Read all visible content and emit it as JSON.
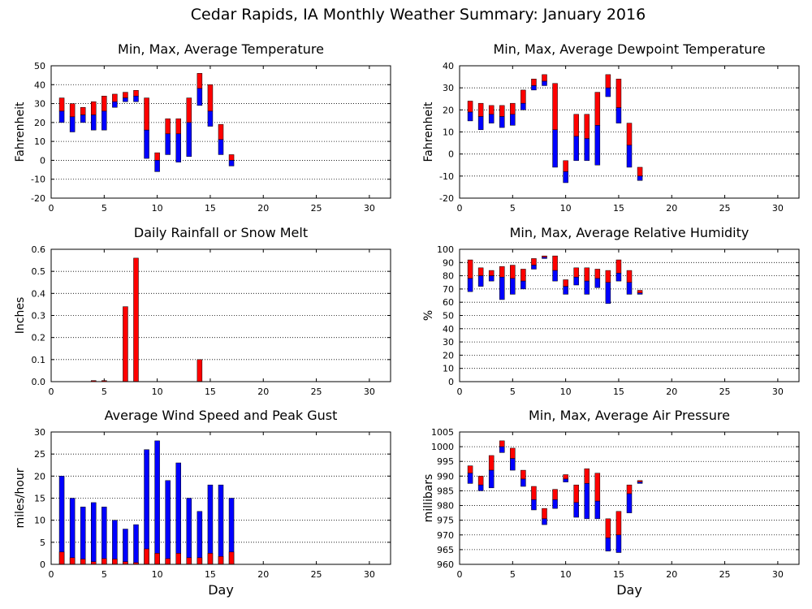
{
  "title": "Cedar Rapids, IA Monthly Weather Summary: January 2016",
  "colors": {
    "red": "#ff0000",
    "blue": "#0000ff",
    "grid": "#000000"
  },
  "chart_data": [
    {
      "type": "floating-bar",
      "title": "Min, Max, Average Temperature",
      "ylabel": "Fahrenheit",
      "xlabel": "",
      "xlim": [
        0,
        32
      ],
      "xticks": [
        0,
        5,
        10,
        15,
        20,
        25,
        30
      ],
      "ylim": [
        -20,
        50
      ],
      "yticks": [
        -20,
        -10,
        0,
        10,
        20,
        30,
        40,
        50
      ],
      "grid": "horizontal dotted",
      "x": [
        1,
        2,
        3,
        4,
        5,
        6,
        7,
        8,
        9,
        10,
        11,
        12,
        13,
        14,
        15,
        16,
        17
      ],
      "min": [
        20,
        15,
        20,
        16,
        16,
        28,
        31,
        31,
        1,
        -6,
        3,
        -1,
        2,
        29,
        18,
        3,
        -3
      ],
      "avg": [
        26,
        23,
        24,
        24,
        26,
        31,
        33,
        34,
        16,
        0,
        14,
        14,
        20,
        38,
        26,
        11,
        0
      ],
      "max": [
        33,
        30,
        28,
        31,
        34,
        35,
        36,
        37,
        33,
        4,
        22,
        22,
        33,
        46,
        40,
        19,
        3
      ]
    },
    {
      "type": "floating-bar",
      "title": "Min, Max, Average Dewpoint Temperature",
      "ylabel": "Fahrenheit",
      "xlabel": "",
      "xlim": [
        0,
        32
      ],
      "xticks": [
        0,
        5,
        10,
        15,
        20,
        25,
        30
      ],
      "ylim": [
        -20,
        40
      ],
      "yticks": [
        -20,
        -10,
        0,
        10,
        20,
        30,
        40
      ],
      "grid": "horizontal dotted",
      "x": [
        1,
        2,
        3,
        4,
        5,
        6,
        7,
        8,
        9,
        10,
        11,
        12,
        13,
        14,
        15,
        16,
        17
      ],
      "min": [
        15,
        11,
        14,
        12,
        13,
        20,
        29,
        31,
        -6,
        -13,
        -3,
        -3,
        -5,
        26,
        14,
        -6,
        -12
      ],
      "avg": [
        19,
        17,
        18,
        17,
        18,
        23,
        31,
        33,
        11,
        -8,
        8,
        7,
        13,
        30,
        21,
        4,
        -10
      ],
      "max": [
        24,
        23,
        22,
        22,
        23,
        29,
        34,
        36,
        32,
        -3,
        18,
        18,
        28,
        36,
        34,
        14,
        -6
      ]
    },
    {
      "type": "bar",
      "title": "Daily Rainfall or Snow Melt",
      "ylabel": "Inches",
      "xlabel": "",
      "xlim": [
        0,
        32
      ],
      "xticks": [
        0,
        5,
        10,
        15,
        20,
        25,
        30
      ],
      "ylim": [
        0,
        0.6
      ],
      "yticks": [
        0.0,
        0.1,
        0.2,
        0.3,
        0.4,
        0.5,
        0.6
      ],
      "ytick_labels": [
        "0.0",
        "0.1",
        "0.2",
        "0.3",
        "0.4",
        "0.5",
        "0.6"
      ],
      "grid": "horizontal dotted",
      "x": [
        4,
        5,
        7,
        8,
        14
      ],
      "values": [
        0.005,
        0.005,
        0.34,
        0.56,
        0.1
      ]
    },
    {
      "type": "floating-bar",
      "title": "Min, Max, Average Relative Humidity",
      "ylabel": "%",
      "xlabel": "",
      "xlim": [
        0,
        32
      ],
      "xticks": [
        0,
        5,
        10,
        15,
        20,
        25,
        30
      ],
      "ylim": [
        0,
        100
      ],
      "yticks": [
        0,
        10,
        20,
        30,
        40,
        50,
        60,
        70,
        80,
        90,
        100
      ],
      "grid": "horizontal dotted",
      "x": [
        1,
        2,
        3,
        4,
        5,
        6,
        7,
        8,
        9,
        10,
        11,
        12,
        13,
        14,
        15,
        16,
        17
      ],
      "min": [
        68,
        72,
        76,
        62,
        66,
        70,
        85,
        93,
        76,
        66,
        73,
        66,
        71,
        59,
        76,
        66,
        66
      ],
      "avg": [
        78,
        80,
        80,
        79,
        78,
        76,
        88,
        94,
        84,
        72,
        79,
        76,
        78,
        75,
        82,
        75,
        67
      ],
      "max": [
        92,
        86,
        84,
        87,
        88,
        85,
        93,
        95,
        95,
        77,
        86,
        86,
        85,
        84,
        92,
        84,
        69
      ]
    },
    {
      "type": "bar",
      "title": "Average Wind Speed and Peak Gust",
      "ylabel": "miles/hour",
      "xlabel": "Day",
      "xlim": [
        0,
        32
      ],
      "xticks": [
        0,
        5,
        10,
        15,
        20,
        25,
        30
      ],
      "ylim": [
        0,
        30
      ],
      "yticks": [
        0,
        5,
        10,
        15,
        20,
        25,
        30
      ],
      "grid": "horizontal dotted",
      "x": [
        1,
        2,
        3,
        4,
        5,
        6,
        7,
        8,
        9,
        10,
        11,
        12,
        13,
        14,
        15,
        16,
        17
      ],
      "series": [
        {
          "color": "blue",
          "values": [
            20,
            15,
            13,
            14,
            13,
            10,
            8,
            9,
            26,
            28,
            19,
            23,
            15,
            12,
            18,
            18,
            15
          ]
        },
        {
          "color": "red",
          "values": [
            2.8,
            1.5,
            1.2,
            0.6,
            1.3,
            1.2,
            0.6,
            0.4,
            3.5,
            2.5,
            1.3,
            2.5,
            1.5,
            1.5,
            2.5,
            1.8,
            2.8
          ]
        }
      ]
    },
    {
      "type": "floating-bar",
      "title": "Min, Max, Average Air Pressure",
      "ylabel": "millibars",
      "xlabel": "Day",
      "xlim": [
        0,
        32
      ],
      "xticks": [
        0,
        5,
        10,
        15,
        20,
        25,
        30
      ],
      "ylim": [
        960,
        1005
      ],
      "yticks": [
        960,
        965,
        970,
        975,
        980,
        985,
        990,
        995,
        1000,
        1005
      ],
      "grid": "horizontal dotted",
      "x": [
        1,
        2,
        3,
        4,
        5,
        6,
        7,
        8,
        9,
        10,
        11,
        12,
        13,
        14,
        15,
        16,
        17
      ],
      "min": [
        987.5,
        985,
        986,
        998,
        992,
        986.5,
        978.5,
        973.5,
        979,
        988,
        976,
        975.5,
        975.5,
        964.5,
        964,
        977.5,
        987.5
      ],
      "avg": [
        991,
        987,
        992,
        1000,
        996,
        989,
        982,
        975.5,
        982,
        989,
        981,
        987.5,
        981.5,
        969,
        970,
        984,
        988
      ],
      "max": [
        993.5,
        990,
        997,
        1002,
        999.5,
        992,
        986.5,
        979,
        985.5,
        990.5,
        987,
        992.5,
        991,
        975.5,
        978,
        987,
        988.5
      ]
    }
  ]
}
